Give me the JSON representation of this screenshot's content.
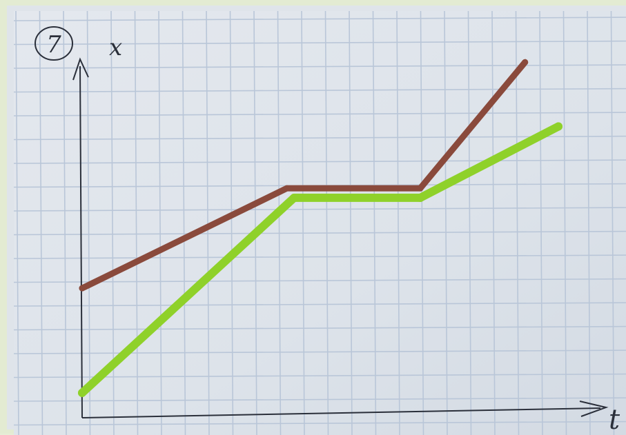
{
  "figure": {
    "badge_label": "7",
    "y_axis_label": "x",
    "x_axis_label": "t"
  },
  "colors": {
    "paper": "#dde3ea",
    "grid": "#b9c6d8",
    "ink": "#2a2f3a",
    "series_brown": "#8a4a3c",
    "series_green": "#8fd12a"
  },
  "chart_data": {
    "type": "line",
    "xlabel": "t",
    "ylabel": "x",
    "grid": true,
    "xlim": [
      0,
      23
    ],
    "ylim": [
      0,
      17
    ],
    "series": [
      {
        "color": "#8a4a3c",
        "points": [
          [
            0,
            5.1
          ],
          [
            8.6,
            9.3
          ],
          [
            14.2,
            9.3
          ],
          [
            18.6,
            14.6
          ]
        ]
      },
      {
        "color": "#8fd12a",
        "points": [
          [
            0,
            0.7
          ],
          [
            8.9,
            8.9
          ],
          [
            14.2,
            8.9
          ],
          [
            20.0,
            11.9
          ]
        ]
      }
    ]
  }
}
